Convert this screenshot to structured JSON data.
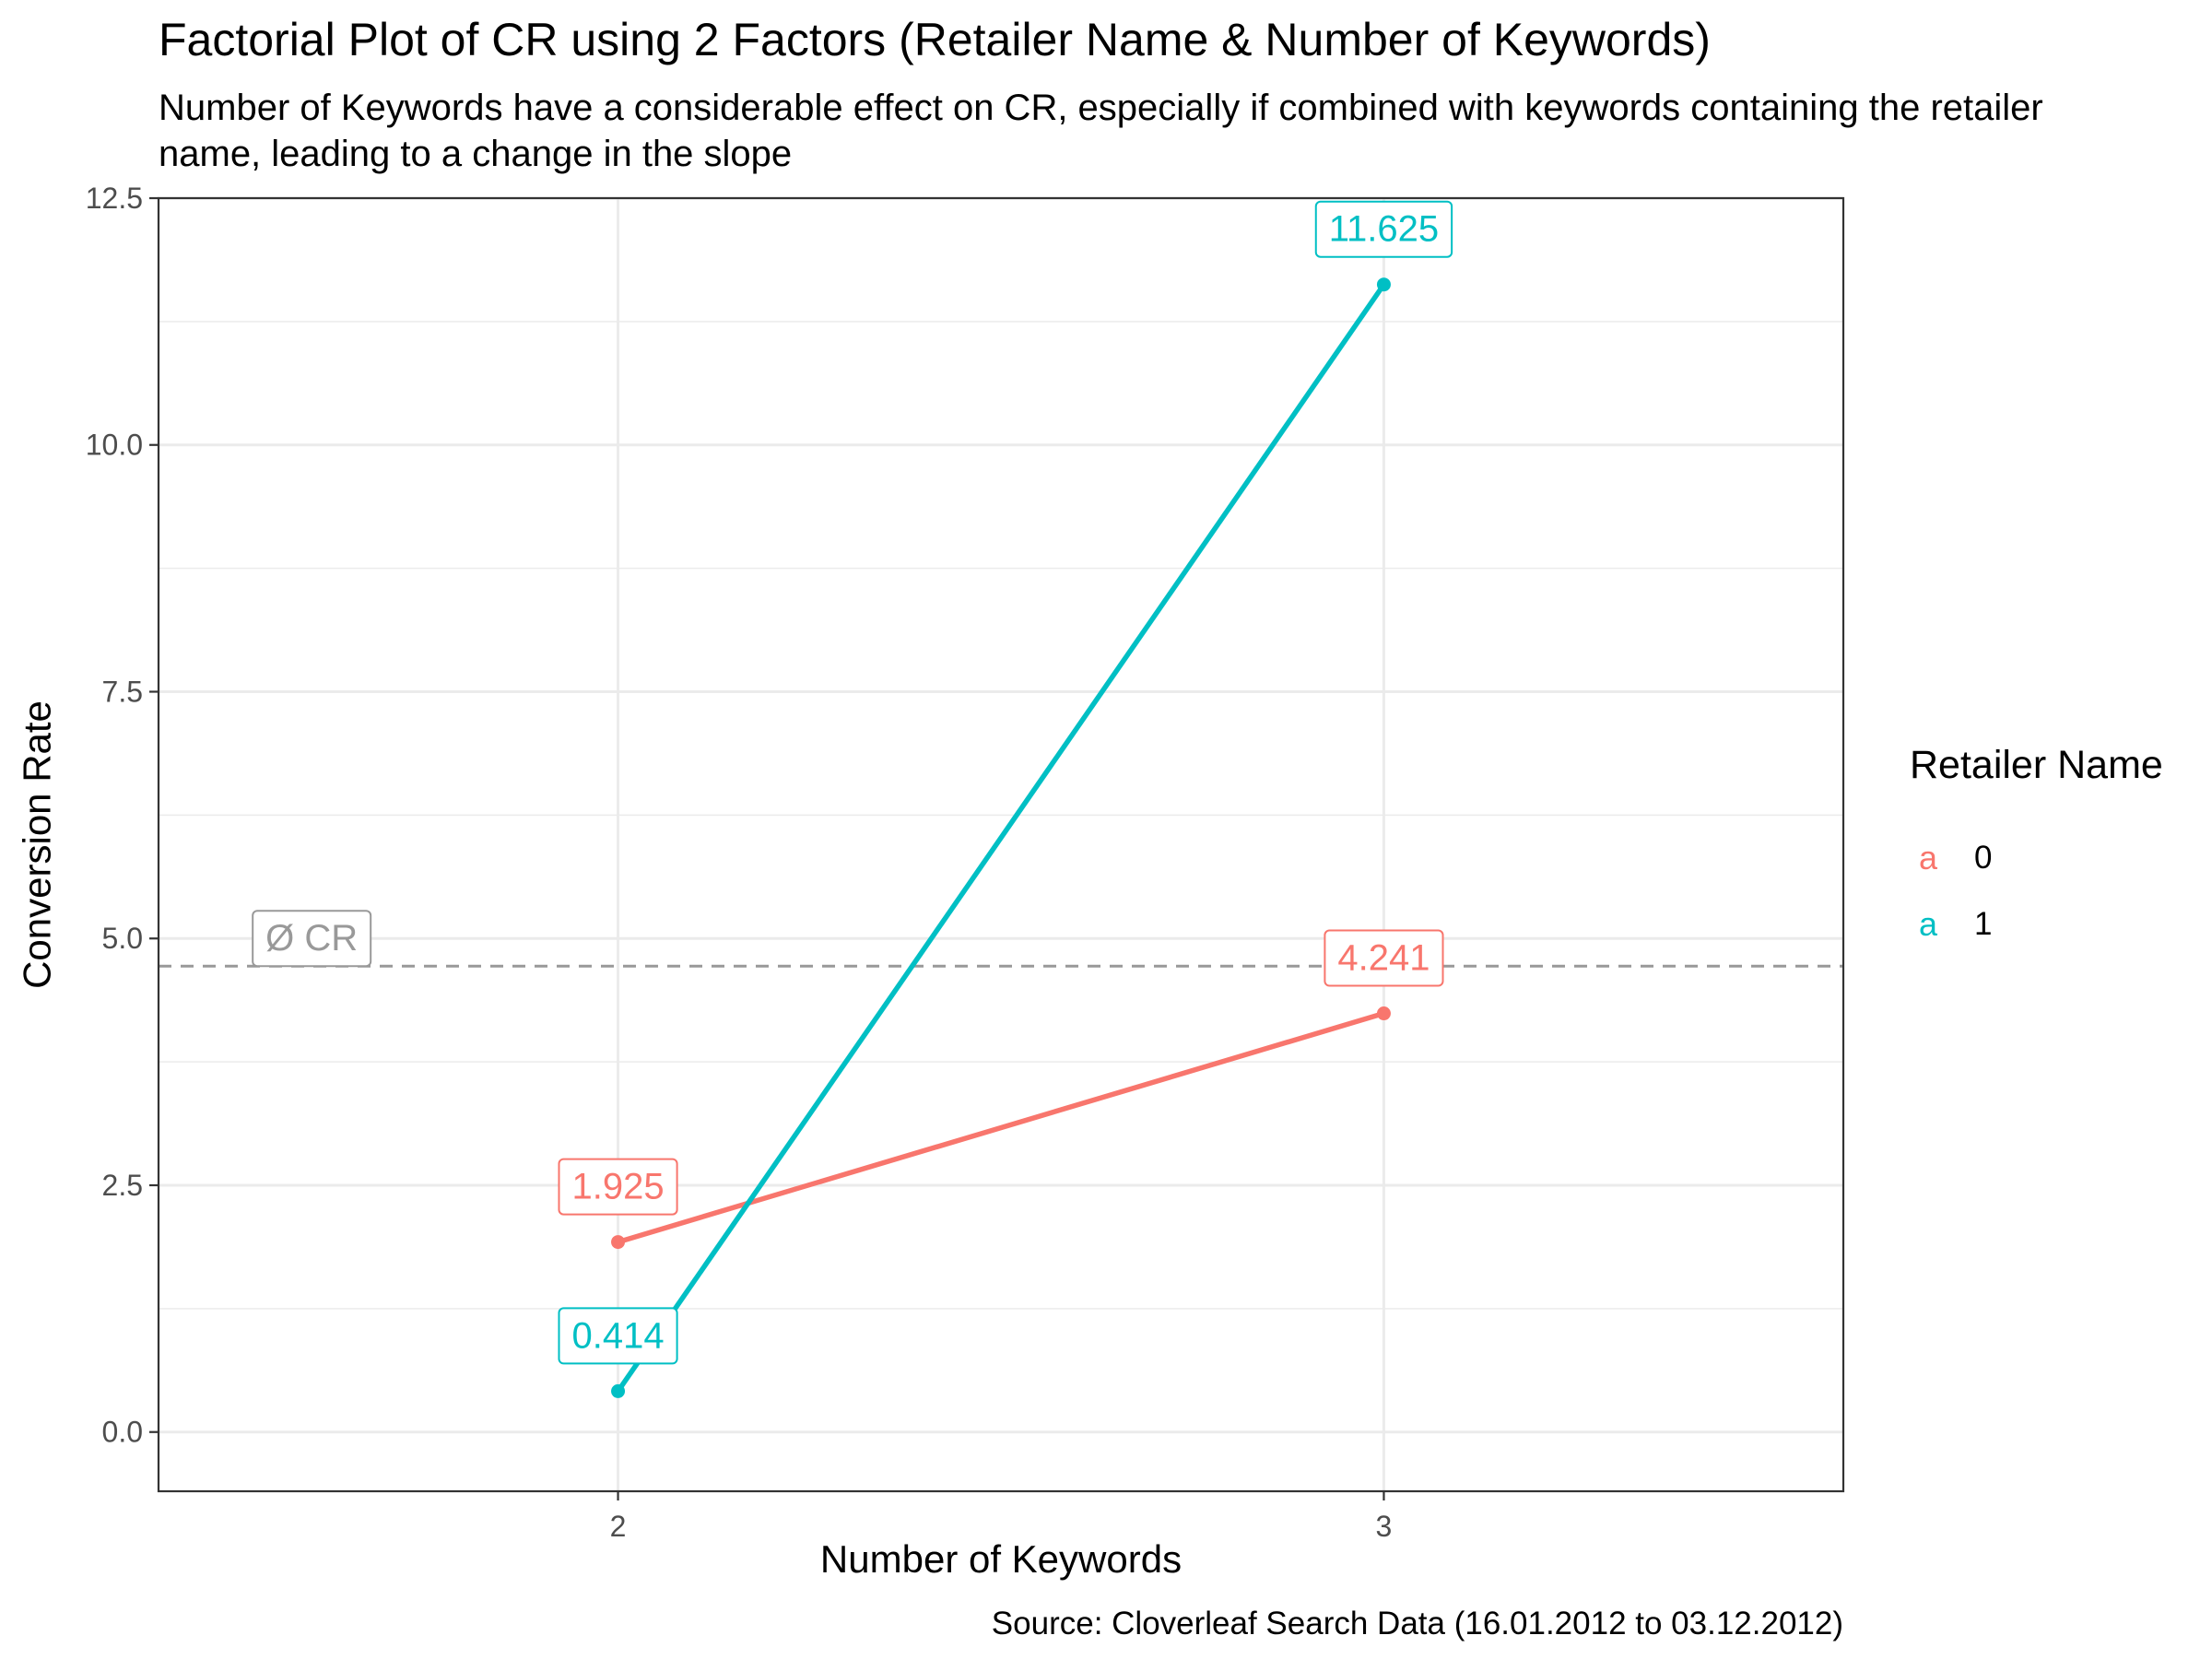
{
  "title": "Factorial Plot of CR using 2 Factors (Retailer Name & Number of Keywords)",
  "subtitle": "Number of Keywords have a considerable effect on CR, especially if combined with keywords containing the retailer name, leading to a change in the slope",
  "caption": "Source: Cloverleaf Search Data (16.01.2012 to 03.12.2012)",
  "legend": {
    "title": "Retailer Name",
    "items": [
      {
        "label": "0",
        "key": "a",
        "color": "#F8766D"
      },
      {
        "label": "1",
        "key": "a",
        "color": "#00BFC4"
      }
    ]
  },
  "chart_data": {
    "type": "line",
    "xlabel": "Number of Keywords",
    "ylabel": "Conversion Rate",
    "x": [
      2,
      3
    ],
    "x_tick_labels": [
      "2",
      "3"
    ],
    "xlim": [
      1.4,
      3.6
    ],
    "ylim": [
      -0.6,
      12.5
    ],
    "y_ticks": [
      0.0,
      2.5,
      5.0,
      7.5,
      10.0,
      12.5
    ],
    "y_tick_labels": [
      "0.0",
      "2.5",
      "5.0",
      "7.5",
      "10.0",
      "12.5"
    ],
    "grid": true,
    "legend_position": "right",
    "series": [
      {
        "name": "0",
        "color": "#F8766D",
        "values": [
          1.925,
          4.241
        ],
        "labels": [
          "1.925",
          "4.241"
        ]
      },
      {
        "name": "1",
        "color": "#00BFC4",
        "values": [
          0.414,
          11.625
        ],
        "labels": [
          "0.414",
          "11.625"
        ]
      }
    ],
    "reference_line": {
      "y": 4.72,
      "label": "Ø CR",
      "color": "#999999",
      "style": "dashed"
    }
  }
}
